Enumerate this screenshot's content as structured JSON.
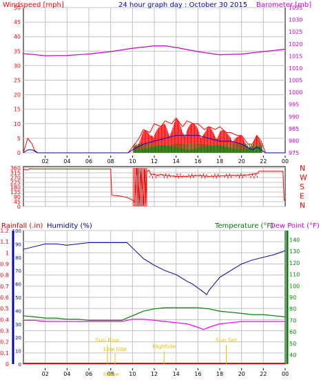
{
  "page_title": "24 hour graph day : October 30 2015",
  "colors": {
    "wind": "#ff0000",
    "wind_avg": "#0000cc",
    "wind_gust": "#008000",
    "baro": "#cc00cc",
    "humidity": "#0000aa",
    "temp": "#008000",
    "dew": "#ff00ff",
    "rain": "#ff0000",
    "grid": "#c0c0c0",
    "events": "#e6c200"
  },
  "chart_data": [
    {
      "type": "line",
      "title": "24 hour graph day : October 30 2015",
      "left_label": "Windspeed [mph]",
      "right_label": "Barometer [mb]",
      "left_ticks": [
        "0",
        "5",
        "10",
        "15",
        "20",
        "25",
        "30",
        "35",
        "40",
        "45",
        "50"
      ],
      "right_ticks": [
        "975",
        "980",
        "985",
        "990",
        "995",
        "1000",
        "1005",
        "1010",
        "1015",
        "1020",
        "1025",
        "1030",
        "1035"
      ],
      "x_ticks": [
        "02",
        "04",
        "06",
        "08",
        "10",
        "12",
        "14",
        "16",
        "18",
        "20",
        "22",
        "00"
      ],
      "xlim": [
        0,
        24
      ],
      "ylim_left": [
        0,
        50
      ],
      "ylim_right": [
        975,
        1035
      ],
      "grid": true,
      "series": [
        {
          "role": "barometer",
          "axis": "right",
          "x": [
            0,
            2,
            4,
            6,
            8,
            10,
            12,
            13,
            14,
            16,
            18,
            20,
            22,
            24
          ],
          "y": [
            1016,
            1015.1,
            1015.2,
            1015.8,
            1016.8,
            1018.2,
            1019.2,
            1019.2,
            1018.5,
            1016.8,
            1015.5,
            1015.8,
            1016.8,
            1017.8
          ]
        },
        {
          "role": "gust",
          "axis": "left",
          "x": [
            0,
            0.4,
            0.8,
            1.0,
            1.3,
            9.6,
            10,
            10.6,
            11,
            11.6,
            12,
            12.6,
            13,
            13.6,
            14,
            14.6,
            15,
            15.6,
            16,
            16.6,
            17,
            17.6,
            18,
            18.6,
            19,
            19.6,
            20,
            20.6,
            21,
            21.4,
            21.8,
            22.2,
            24
          ],
          "y": [
            0,
            5,
            3,
            1,
            0,
            0,
            2,
            5,
            8,
            7,
            10,
            9,
            11,
            10,
            12,
            9,
            11,
            10,
            10,
            8,
            9,
            8,
            9,
            7,
            7,
            6,
            6,
            3,
            3,
            6,
            4,
            0,
            0
          ]
        },
        {
          "role": "average",
          "axis": "left",
          "x": [
            0,
            0.4,
            0.8,
            1.3,
            9.6,
            10,
            11,
            12,
            13,
            14,
            15,
            16,
            17,
            18,
            19,
            20,
            21,
            21.4,
            21.8,
            22.2,
            24
          ],
          "y": [
            0,
            1,
            1,
            0,
            0,
            1,
            3,
            4,
            5,
            6,
            6,
            6,
            5,
            4,
            4,
            3,
            1,
            2,
            1,
            0,
            0
          ]
        },
        {
          "role": "gust_bars",
          "axis": "left",
          "x": [
            0,
            0.4,
            0.8,
            1.3,
            9.6,
            10,
            11,
            12,
            13,
            14,
            15,
            16,
            17,
            18,
            19,
            20,
            21,
            21.4,
            22.2,
            24
          ],
          "y": [
            0,
            1,
            1,
            0,
            0,
            1,
            2,
            3,
            3,
            3,
            3,
            3,
            3,
            3,
            2,
            2,
            1,
            1,
            0,
            0
          ]
        }
      ]
    },
    {
      "type": "line",
      "title": "",
      "left_ticks": [
        "0",
        "45",
        "90",
        "135",
        "180",
        "225",
        "270",
        "315",
        "360"
      ],
      "right_ticks": [
        "N",
        "W",
        "S",
        "E",
        "N"
      ],
      "ylim": [
        0,
        360
      ],
      "grid": true,
      "series": [
        {
          "role": "wind_direction",
          "x": [
            0,
            0.3,
            0.6,
            1,
            2,
            3,
            4,
            5,
            6,
            7,
            8,
            8.1,
            8.6,
            9,
            9.5,
            10,
            10.2,
            10.4,
            10.6,
            10.8,
            11,
            11.1,
            11.2,
            11.3,
            11.5,
            11.7,
            12,
            12.3,
            12.6,
            13,
            14,
            15,
            16,
            17,
            18,
            19,
            20,
            21,
            21.5,
            21.6,
            22,
            23,
            23.8,
            23.9,
            24
          ],
          "y": [
            350,
            340,
            352,
            350,
            350,
            350,
            350,
            350,
            350,
            350,
            350,
            105,
            100,
            95,
            85,
            60,
            40,
            360,
            20,
            330,
            10,
            350,
            30,
            320,
            340,
            300,
            300,
            290,
            300,
            290,
            280,
            280,
            290,
            280,
            285,
            290,
            290,
            300,
            310,
            330,
            330,
            330,
            330,
            60,
            50
          ]
        }
      ]
    },
    {
      "type": "line",
      "title": "",
      "left_label_rain": "Rainfall (.in)",
      "left_label_hum": "Humidity (%)",
      "right_label_temp": "Temperature (°F)",
      "right_label_dew": "Dew Point (°F)",
      "rain_ticks": [
        "0",
        "0.1",
        "0.2",
        "0.3",
        "0.4",
        "0.5",
        "0.6",
        "0.7",
        "0.8",
        "0.9",
        "1",
        "1.1",
        "1.2"
      ],
      "hum_ticks": [
        "0",
        "10",
        "20",
        "30",
        "40",
        "50",
        "60",
        "70",
        "80",
        "90",
        "100"
      ],
      "temp_ticks": [
        "40",
        "50",
        "60",
        "70",
        "80",
        "90",
        "100",
        "110",
        "120",
        "130",
        "140"
      ],
      "x_ticks": [
        "02",
        "04",
        "06",
        "08",
        "10",
        "12",
        "14",
        "16",
        "18",
        "20",
        "22",
        "00"
      ],
      "ylim_rain": [
        0,
        1.2
      ],
      "ylim_temp": [
        32,
        148
      ],
      "grid": true,
      "series": [
        {
          "role": "humidity",
          "x": [
            0,
            1,
            2,
            3,
            4,
            5,
            6,
            7,
            8,
            9,
            9.5,
            10,
            11,
            12,
            13,
            14,
            15,
            15.5,
            16,
            16.5,
            16.8,
            17,
            17.5,
            18,
            19,
            20,
            21,
            22,
            23,
            24
          ],
          "y": [
            86,
            88,
            90,
            90,
            89,
            90,
            91,
            91,
            91,
            91,
            91,
            87,
            79,
            74,
            70,
            67,
            62,
            60,
            57,
            54,
            52,
            55,
            60,
            65,
            70,
            75,
            78,
            80,
            82,
            85
          ]
        },
        {
          "role": "temperature",
          "x": [
            0,
            1,
            2,
            3,
            4,
            5,
            6,
            7,
            8,
            9,
            10,
            11,
            12,
            13,
            14,
            15,
            16,
            17,
            18,
            19,
            20,
            21,
            22,
            23,
            24
          ],
          "y": [
            74,
            73,
            72,
            72,
            71,
            71,
            70,
            70,
            70,
            70,
            74,
            78,
            80,
            81,
            81,
            81,
            81,
            80,
            78,
            77,
            76,
            75,
            75,
            74,
            73
          ]
        },
        {
          "role": "dew_point",
          "x": [
            0,
            1,
            2,
            3,
            4,
            5,
            6,
            7,
            8,
            9,
            10,
            11,
            12,
            13,
            14,
            15,
            16,
            16.5,
            17,
            18,
            19,
            20,
            21,
            22,
            23,
            24
          ],
          "y": [
            70,
            70,
            69,
            69,
            69,
            69,
            69,
            69,
            69,
            69,
            71,
            71,
            70,
            69,
            68,
            67,
            64,
            62,
            64,
            67,
            68,
            69,
            69,
            69,
            69,
            69
          ]
        }
      ],
      "events": [
        {
          "label": "Sun Rise",
          "x": 7.7
        },
        {
          "label": "Low tide",
          "x": 8.4
        },
        {
          "label": "Hightide",
          "x": 12.9
        },
        {
          "label": "Sun Set",
          "x": 18.6
        }
      ],
      "event_x_labels": [
        "Sun",
        "Low"
      ]
    }
  ]
}
